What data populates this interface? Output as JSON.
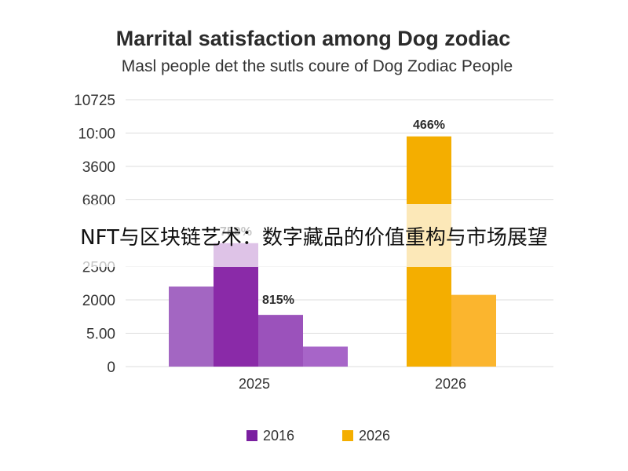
{
  "overlay": {
    "text": "NFT与区块链艺术：数字藏品的价值重构与市场展望"
  },
  "chart_data": {
    "type": "bar",
    "title": "Marrital satisfaction among Dog zodiac",
    "subtitle": "Masl people det the sutls coure of Dog Zodiac People",
    "xlabel": "",
    "ylabel": "",
    "ytick_labels": [
      "10725",
      "10:00",
      "3600",
      "6800",
      "2500",
      "2000",
      "5.00",
      "0"
    ],
    "ytick_levels": [
      8000,
      7000,
      6000,
      5000,
      3000,
      2000,
      1000,
      0
    ],
    "ylim": [
      0,
      8000
    ],
    "grid": true,
    "legend_position": "bottom",
    "groups": [
      {
        "label": "2025",
        "bars": [
          {
            "value": 2400,
            "color": "#a366c2",
            "label": ""
          },
          {
            "value": 3700,
            "color": "#8a2aa8",
            "label": "759%"
          },
          {
            "value": 1550,
            "color": "#9b52bb",
            "label": "815%"
          },
          {
            "value": 600,
            "color": "#a765c8",
            "label": ""
          }
        ]
      },
      {
        "label": "2026",
        "bars": [
          {
            "value": 6900,
            "color": "#f4ae00",
            "label": "466%"
          },
          {
            "value": 2150,
            "color": "#fbb52e",
            "label": ""
          }
        ]
      }
    ],
    "legend": [
      {
        "name": "2016",
        "color": "#7a1fa0"
      },
      {
        "name": "2026",
        "color": "#f4ae00"
      }
    ]
  }
}
